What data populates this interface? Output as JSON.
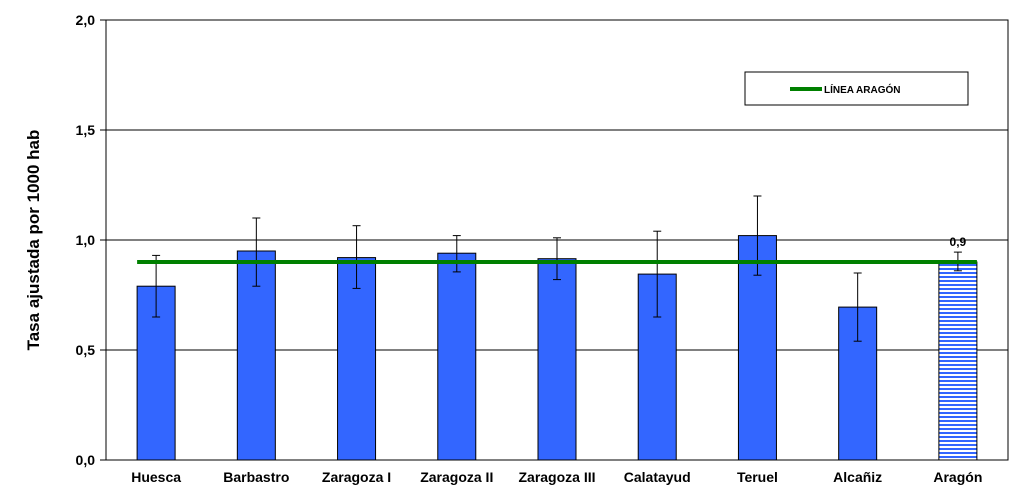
{
  "chart_data": {
    "type": "bar",
    "ylabel": "Tasa ajustada por 1000 hab",
    "ylim": [
      0,
      2
    ],
    "yticks": [
      "0,0",
      "0,5",
      "1,0",
      "1,5",
      "2,0"
    ],
    "ytick_values": [
      0,
      0.5,
      1.0,
      1.5,
      2.0
    ],
    "grid": true,
    "categories": [
      "Huesca",
      "Barbastro",
      "Zaragoza I",
      "Zaragoza II",
      "Zaragoza III",
      "Calatayud",
      "Teruel",
      "Alcañiz",
      "Aragón"
    ],
    "values": [
      0.79,
      0.95,
      0.92,
      0.94,
      0.915,
      0.845,
      1.02,
      0.695,
      0.9
    ],
    "error_low": [
      0.65,
      0.79,
      0.78,
      0.855,
      0.82,
      0.65,
      0.84,
      0.54,
      0.86
    ],
    "error_high": [
      0.93,
      1.1,
      1.065,
      1.02,
      1.01,
      1.04,
      1.2,
      0.85,
      0.945
    ],
    "bar_color": "#3366ff",
    "highlight_category": "Aragón",
    "highlight_pattern": "horizontal-stripes",
    "reference_line": {
      "label": "LÍNEA ARAGÓN",
      "value": 0.9,
      "color": "#008000"
    },
    "data_labels": [
      {
        "category": "Aragón",
        "text": "0,9"
      }
    ],
    "legend": {
      "position": "top-right",
      "entries": [
        "LÍNEA ARAGÓN"
      ]
    }
  }
}
